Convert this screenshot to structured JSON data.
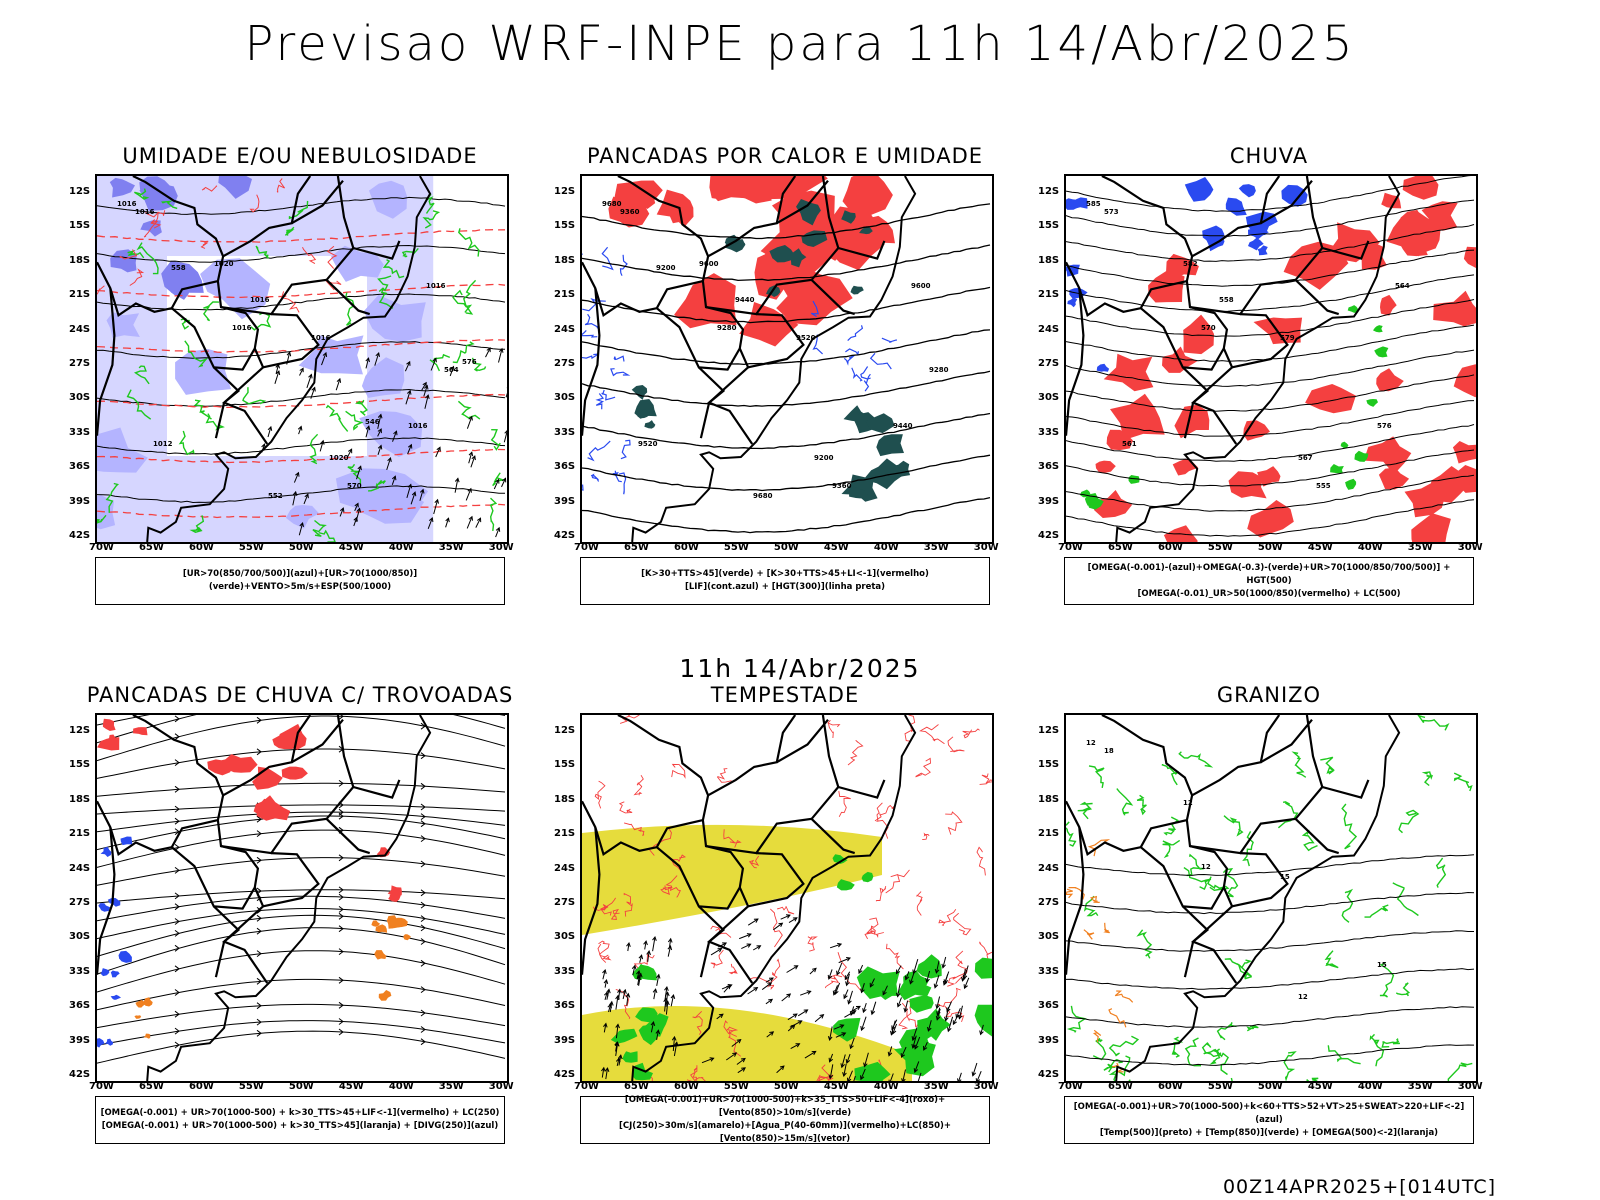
{
  "header": {
    "title": "Previsao WRF-INPE  para 11h 14/Abr/2025"
  },
  "subtitle": "11h 14/Abr/2025",
  "footer": "00Z14APR2025+[014UTC]",
  "axes": {
    "lat_labels": [
      "12S",
      "15S",
      "18S",
      "21S",
      "24S",
      "27S",
      "30S",
      "33S",
      "36S",
      "39S",
      "42S"
    ],
    "lon_labels": [
      "70W",
      "65W",
      "60W",
      "55W",
      "50W",
      "45W",
      "40W",
      "35W",
      "30W"
    ]
  },
  "panels": [
    {
      "title": "UMIDADE E/OU NEBULOSIDADE",
      "legend": [
        "[UR>70(850/700/500)](azul)+[UR>70(1000/850)](verde)+VENTO>5m/s+ESP(500/1000)"
      ],
      "contour_labels": [
        "1016",
        "1020",
        "1016",
        "1016",
        "1016",
        "1016",
        "1020",
        "1016",
        "1012",
        "1016",
        "570",
        "564",
        "558",
        "552",
        "546",
        "576"
      ]
    },
    {
      "title": "PANCADAS POR CALOR E UMIDADE",
      "legend": [
        "[K>30+TTS>45](verde) + [K>30+TTS>45+LI<-1](vermelho)",
        "[LIF](cont.azul) + [HGT(300)](linha preta)"
      ],
      "contour_labels": [
        "9680",
        "9600",
        "9520",
        "9440",
        "9360",
        "9280",
        "9200",
        "9600",
        "9520",
        "9440",
        "9360",
        "9280",
        "9200",
        "9680"
      ]
    },
    {
      "title": "CHUVA",
      "legend": [
        "[OMEGA(-0.001)-(azul)+OMEGA(-0.3)-(verde)+UR>70(1000/850/700/500)] + HGT(500)",
        "[OMEGA(-0.01)_UR>50(1000/850)(vermelho) + LC(500)"
      ],
      "contour_labels": [
        "585",
        "582",
        "579",
        "576",
        "573",
        "570",
        "567",
        "564",
        "561",
        "558",
        "555"
      ]
    },
    {
      "title": "PANCADAS DE CHUVA C/ TROVOADAS",
      "legend": [
        "[OMEGA(-0.001) + UR>70(1000-500) + k>30_TTS>45+LIF<-1](vermelho) + LC(250)",
        "[OMEGA(-0.001) + UR>70(1000-500) + k>30_TTS>45](laranja) + [DIVG(250)](azul)"
      ],
      "contour_labels": []
    },
    {
      "title": "TEMPESTADE",
      "legend": [
        "[OMEGA(-0.001)+UR>70(1000-500)+k>35_TTS>50+LIF<-4](roxo)+[Vento(850)>10m/s](verde)",
        "[CJ(250)>30m/s](amarelo)+[Agua_P(40-60mm)](vermelho)+LC(850)+[Vento(850)>15m/s](vetor)"
      ],
      "contour_labels": []
    },
    {
      "title": "GRANIZO",
      "legend": [
        "[OMEGA(-0.001)+UR>70(1000-500)+k<60+TTS>52+VT>25+SWEAT>220+LIF<-2](azul)",
        "[Temp(500)](preto) + [Temp(850)](verde) + [OMEGA(500)<-2](laranja)"
      ],
      "contour_labels": [
        "12",
        "12",
        "15",
        "15",
        "18",
        "12",
        "12"
      ]
    }
  ],
  "colors": {
    "red": "#f44040",
    "blue": "#2a4af0",
    "green": "#1ec81e",
    "lavender": "#b4b4ff",
    "yellow": "#e6dc3c",
    "darkteal": "#1f4f4f",
    "orange": "#f08020"
  }
}
